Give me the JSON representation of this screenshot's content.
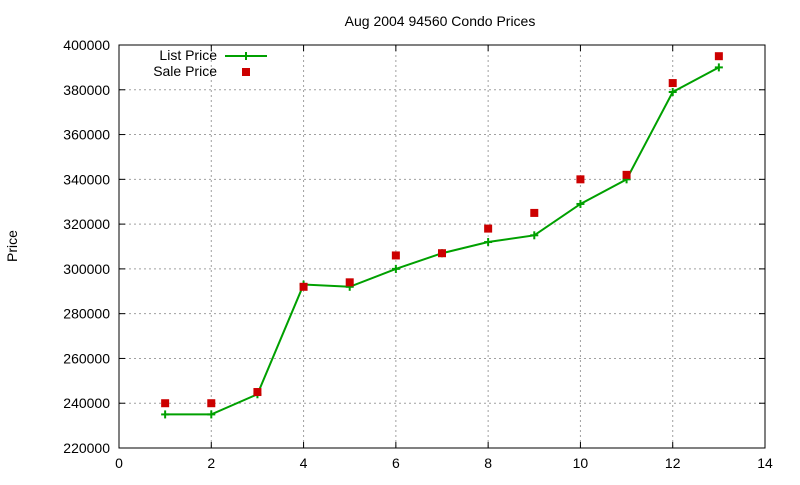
{
  "chart_data": {
    "type": "line",
    "title": "Aug 2004 94560 Condo Prices",
    "xlabel": "",
    "ylabel": "Price",
    "xlim": [
      0,
      14
    ],
    "ylim": [
      220000,
      400000
    ],
    "xticks": [
      0,
      2,
      4,
      6,
      8,
      10,
      12,
      14
    ],
    "yticks": [
      220000,
      240000,
      260000,
      280000,
      300000,
      320000,
      340000,
      360000,
      380000,
      400000
    ],
    "grid": true,
    "legend": "top-left",
    "x": [
      1,
      2,
      3,
      4,
      5,
      6,
      7,
      8,
      9,
      10,
      11,
      12,
      13
    ],
    "series": [
      {
        "name": "List Price",
        "style": "linespoints",
        "color": "#00a000",
        "values": [
          235000,
          235000,
          244000,
          293000,
          292000,
          300000,
          307000,
          312000,
          315000,
          329000,
          340000,
          379000,
          390000
        ]
      },
      {
        "name": "Sale Price",
        "style": "points",
        "color": "#cc0000",
        "values": [
          240000,
          240000,
          245000,
          292000,
          294000,
          306000,
          307000,
          318000,
          325000,
          340000,
          342000,
          383000,
          395000
        ]
      }
    ]
  }
}
